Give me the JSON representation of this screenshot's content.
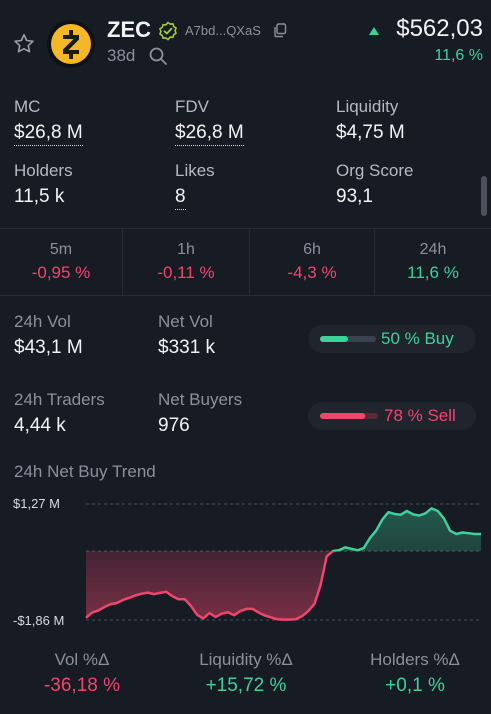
{
  "header": {
    "symbol": "ZEC",
    "address": "A7bd...QXaS",
    "age": "38d",
    "price": "$562,03",
    "price_change": "11,6 %",
    "icons": [
      "star-icon",
      "zcash-logo",
      "verified-icon",
      "copy-icon",
      "search-icon",
      "up-triangle-icon"
    ]
  },
  "stats": {
    "mc": {
      "label": "MC",
      "value": "$26,8 M"
    },
    "fdv": {
      "label": "FDV",
      "value": "$26,8 M"
    },
    "liquidity": {
      "label": "Liquidity",
      "value": "$4,75 M"
    },
    "holders": {
      "label": "Holders",
      "value": "11,5 k"
    },
    "likes": {
      "label": "Likes",
      "value": "8"
    },
    "org_score": {
      "label": "Org Score",
      "value": "93,1"
    }
  },
  "periods": [
    {
      "label": "5m",
      "value": "-0,95 %"
    },
    {
      "label": "1h",
      "value": "-0,11 %"
    },
    {
      "label": "6h",
      "value": "-4,3 %"
    },
    {
      "label": "24h",
      "value": "11,6 %"
    }
  ],
  "volume": {
    "vol_label": "24h Vol",
    "vol_value": "$43,1 M",
    "net_vol_label": "Net Vol",
    "net_vol_value": "$331 k",
    "buy_pill": "50 % Buy",
    "buy_fraction": 0.5,
    "traders_label": "24h Traders",
    "traders_value": "4,44 k",
    "net_buyers_label": "Net Buyers",
    "net_buyers_value": "976",
    "sell_pill": "78 % Sell",
    "sell_fraction": 0.78
  },
  "trend": {
    "title": "24h Net Buy Trend",
    "y_max_label": "$1,27 M",
    "y_min_label": "-$1,86 M"
  },
  "chart_data": {
    "type": "area",
    "title": "24h Net Buy Trend",
    "ylim": [
      -1.86,
      1.27
    ],
    "yticks": [
      "$1,27 M",
      "-$1,86 M"
    ],
    "series": [
      {
        "values": [
          -1.8,
          -1.66,
          -1.6,
          -1.51,
          -1.43,
          -1.4,
          -1.32,
          -1.26,
          -1.2,
          -1.15,
          -1.12,
          -1.16,
          -1.13,
          -1.1,
          -1.22,
          -1.3,
          -1.3,
          -1.48,
          -1.72,
          -1.82,
          -1.67,
          -1.78,
          -1.69,
          -1.65,
          -1.73,
          -1.62,
          -1.56,
          -1.56,
          -1.66,
          -1.74,
          -1.79,
          -1.84,
          -1.85,
          -1.85,
          -1.84,
          -1.76,
          -1.62,
          -1.43,
          -0.92,
          -0.14,
          0.0,
          0.02,
          0.1,
          0.06,
          0.02,
          0.08,
          0.35,
          0.55,
          0.85,
          1.05,
          1.0,
          0.98,
          1.08,
          0.99,
          0.96,
          1.02,
          1.15,
          1.08,
          0.88,
          0.55,
          0.46,
          0.5,
          0.48,
          0.46,
          0.46
        ]
      }
    ]
  },
  "bottom": {
    "vol": {
      "label": "Vol %Δ",
      "value": "-36,18 %"
    },
    "liq": {
      "label": "Liquidity %Δ",
      "value": "+15,72 %"
    },
    "holders": {
      "label": "Holders %Δ",
      "value": "+0,1 %"
    }
  },
  "colors": {
    "green": "#3fd19a",
    "red": "#f0466e",
    "bg": "#171b24"
  }
}
